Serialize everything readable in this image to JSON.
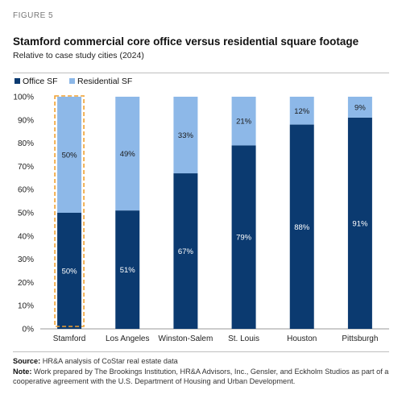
{
  "figure_label": "FIGURE 5",
  "title": "Stamford commercial core office versus residential square footage",
  "subtitle": "Relative to case study cities (2024)",
  "footnotes": {
    "source_label": "Source:",
    "source_text": "HR&A analysis of CoStar real estate data",
    "note_label": "Note:",
    "note_text": "Work prepared by The Brookings Institution, HR&A Advisors, Inc., Gensler, and Eckholm Studios as part of a cooperative agreement with the U.S. Department of Housing and Urban Development."
  },
  "colors": {
    "office": "#0b3a70",
    "residential": "#8db8e8",
    "highlight": "#f0a030",
    "axis": "#999999",
    "label_on_dark": "#ffffff",
    "label_on_light": "#1a1a1a"
  },
  "chart_data": {
    "type": "bar",
    "stacked": true,
    "percent": true,
    "categories": [
      "Stamford",
      "Los Angeles",
      "Winston-Salem",
      "St. Louis",
      "Houston",
      "Pittsburgh"
    ],
    "series": [
      {
        "name": "Office SF",
        "values": [
          50,
          51,
          67,
          79,
          88,
          91
        ],
        "labels": [
          "50%",
          "51%",
          "67%",
          "79%",
          "88%",
          "91%"
        ]
      },
      {
        "name": "Residential SF",
        "values": [
          50,
          49,
          33,
          21,
          12,
          9
        ],
        "labels": [
          "50%",
          "49%",
          "33%",
          "21%",
          "12%",
          "9%"
        ]
      }
    ],
    "yticks": [
      "0%",
      "10%",
      "20%",
      "30%",
      "40%",
      "50%",
      "60%",
      "70%",
      "80%",
      "90%",
      "100%"
    ],
    "ylim": [
      0,
      100
    ],
    "legend": "top-left",
    "grid": false,
    "highlight_category": "Stamford"
  }
}
